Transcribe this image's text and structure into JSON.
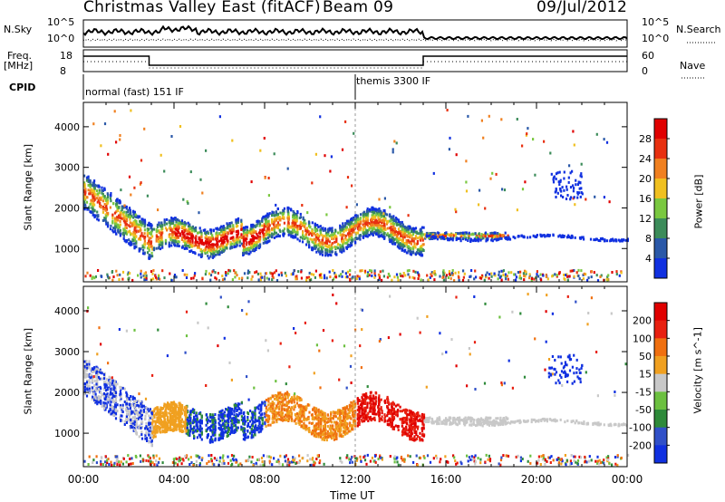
{
  "header": {
    "title": "Christmas Valley East (fitACF)",
    "beam": "Beam 09",
    "date": "09/Jul/2012"
  },
  "summary": {
    "nsky_label": "N.Sky",
    "nsearch_label": "N.Search",
    "nsky_ticks": [
      "10^5",
      "10^0"
    ],
    "nsearch_ticks": [
      "10^5",
      "10^0"
    ],
    "freq_label": "Freq.",
    "freq_unit": "[MHz]",
    "freq_ticks": [
      "18",
      "8"
    ],
    "nave_label": "Nave",
    "nave_ticks": [
      "60",
      "0"
    ],
    "cpid_label": "CPID",
    "cpid_segments": [
      {
        "label": "normal (fast) 151 IF",
        "start_hour": 0
      },
      {
        "label": "themis 3300 IF",
        "start_hour": 12
      }
    ]
  },
  "chart_data": [
    {
      "type": "heatmap",
      "name": "power",
      "ylabel": "Slant Range [km]",
      "colorbar_label": "Power [dB]",
      "y_ticks": [
        1000,
        2000,
        3000,
        4000
      ],
      "ylim": [
        180,
        4600
      ],
      "colorbar_ticks": [
        4,
        8,
        12,
        16,
        20,
        24,
        28
      ],
      "colorbar_range": [
        0,
        32
      ],
      "colors": [
        "#1030e0",
        "#2a58a8",
        "#3c8c5a",
        "#7ac840",
        "#f0c020",
        "#f08020",
        "#e83010",
        "#e00000"
      ]
    },
    {
      "type": "heatmap",
      "name": "velocity",
      "ylabel": "Slant Range [km]",
      "colorbar_label": "Velocity [m s^-1]",
      "y_ticks": [
        1000,
        2000,
        3000,
        4000
      ],
      "ylim": [
        180,
        4600
      ],
      "colorbar_ticks": [
        200,
        100,
        50,
        15,
        -15,
        -50,
        -100,
        -200
      ],
      "colors": [
        "#1030e0",
        "#3050c8",
        "#2e8a3a",
        "#6cc040",
        "#c8c8c8",
        "#f0a020",
        "#f07010",
        "#e82010",
        "#e00000"
      ]
    }
  ],
  "x_axis": {
    "label": "Time UT",
    "ticks": [
      "00:00",
      "04:00",
      "08:00",
      "12:00",
      "16:00",
      "20:00",
      "00:00"
    ]
  },
  "colors": {
    "dashed_line": "#999999"
  }
}
